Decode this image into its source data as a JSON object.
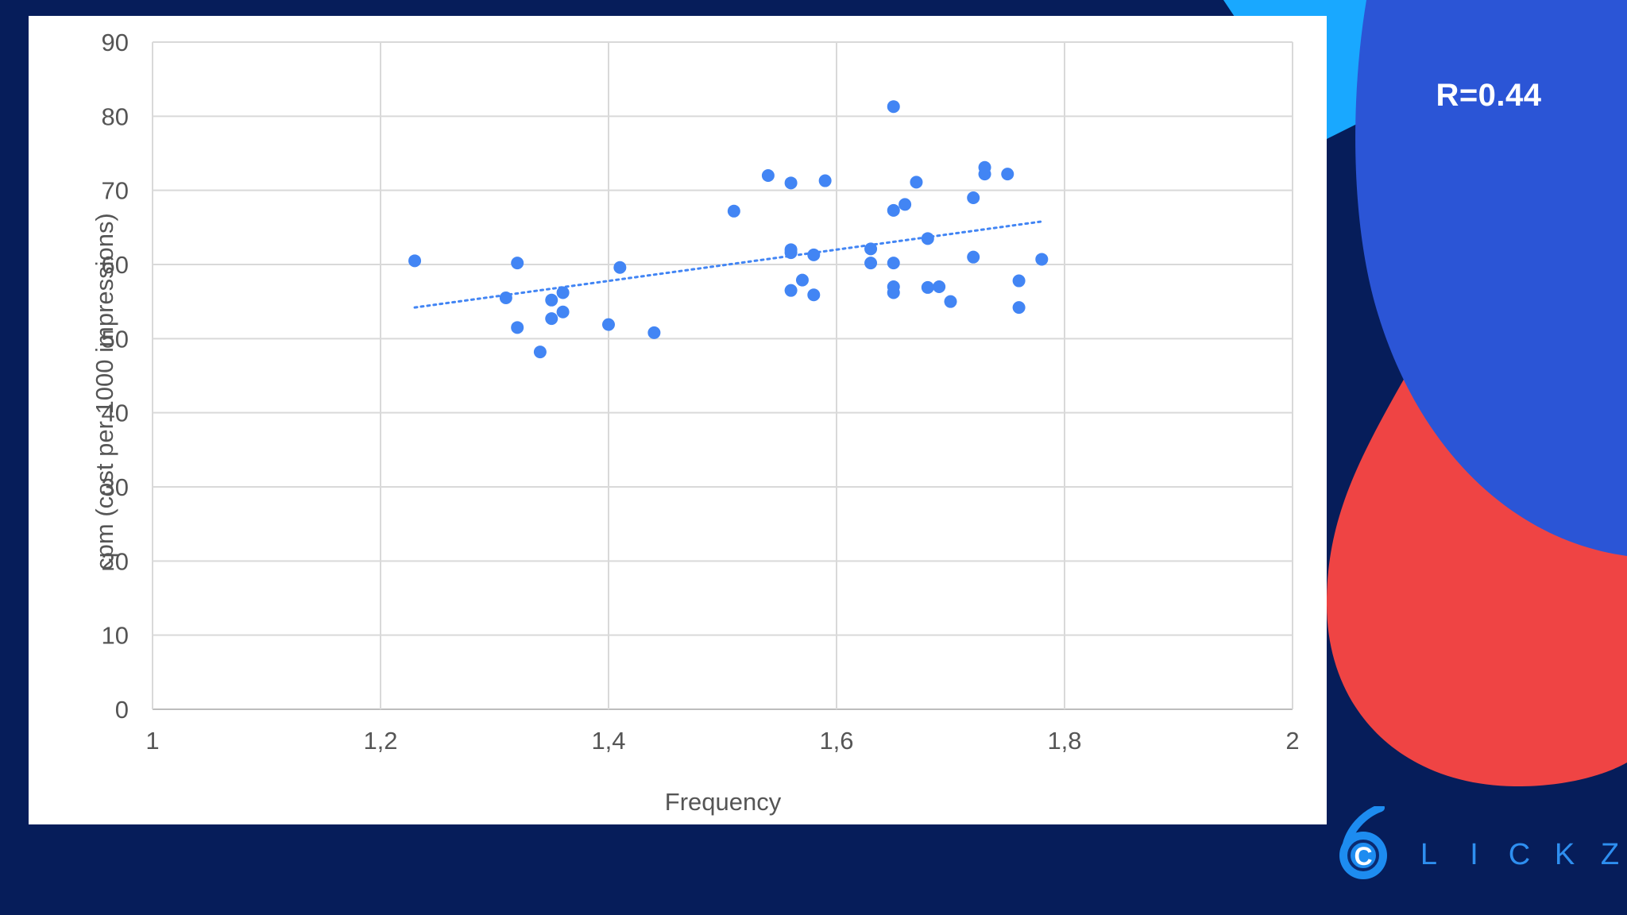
{
  "chart_data": {
    "type": "scatter",
    "title": "",
    "xlabel": "Frequency",
    "ylabel": "cpm (cost per 1000 impressions)",
    "xlim": [
      1,
      2
    ],
    "ylim": [
      0,
      90
    ],
    "x_ticks": [
      "1",
      "1,2",
      "1,4",
      "1,6",
      "1,8",
      "2"
    ],
    "x_tick_values": [
      1,
      1.2,
      1.4,
      1.6,
      1.8,
      2
    ],
    "y_ticks": [
      "0",
      "10",
      "20",
      "30",
      "40",
      "50",
      "60",
      "70",
      "80",
      "90"
    ],
    "y_tick_values": [
      0,
      10,
      20,
      30,
      40,
      50,
      60,
      70,
      80,
      90
    ],
    "grid": true,
    "point_color": "#4285f4",
    "trendline": {
      "style": "dotted",
      "color": "#4285f4",
      "x": [
        1.23,
        1.78
      ],
      "y": [
        54.2,
        65.8
      ]
    },
    "series": [
      {
        "points": [
          [
            1.23,
            60.5
          ],
          [
            1.31,
            55.5
          ],
          [
            1.32,
            60.2
          ],
          [
            1.32,
            51.5
          ],
          [
            1.34,
            48.2
          ],
          [
            1.35,
            55.2
          ],
          [
            1.35,
            52.7
          ],
          [
            1.36,
            56.2
          ],
          [
            1.36,
            53.6
          ],
          [
            1.4,
            51.9
          ],
          [
            1.41,
            59.6
          ],
          [
            1.44,
            50.8
          ],
          [
            1.51,
            67.2
          ],
          [
            1.54,
            72.0
          ],
          [
            1.56,
            71.0
          ],
          [
            1.56,
            62.0
          ],
          [
            1.56,
            61.6
          ],
          [
            1.56,
            56.5
          ],
          [
            1.57,
            57.9
          ],
          [
            1.58,
            61.3
          ],
          [
            1.58,
            55.9
          ],
          [
            1.59,
            71.3
          ],
          [
            1.63,
            62.1
          ],
          [
            1.63,
            60.2
          ],
          [
            1.65,
            81.3
          ],
          [
            1.65,
            67.3
          ],
          [
            1.65,
            60.2
          ],
          [
            1.65,
            57.0
          ],
          [
            1.65,
            56.2
          ],
          [
            1.66,
            68.1
          ],
          [
            1.67,
            71.1
          ],
          [
            1.68,
            63.5
          ],
          [
            1.68,
            56.9
          ],
          [
            1.69,
            57.0
          ],
          [
            1.7,
            55.0
          ],
          [
            1.72,
            69.0
          ],
          [
            1.72,
            61.0
          ],
          [
            1.73,
            73.1
          ],
          [
            1.73,
            72.2
          ],
          [
            1.75,
            72.2
          ],
          [
            1.76,
            57.8
          ],
          [
            1.76,
            54.2
          ],
          [
            1.78,
            60.7
          ]
        ]
      }
    ]
  },
  "annotation": {
    "correlation": "R=0.44"
  },
  "branding": {
    "logo_letters": [
      "L",
      "I",
      "C",
      "K",
      "Z"
    ],
    "logo_mark_letter": "C",
    "colors": {
      "background": "#061d5a",
      "blob_blue": "#2b55d6",
      "blob_red": "#ef4444",
      "accent_cyan": "#19a8ff",
      "logo_blue": "#2e8ff0"
    }
  }
}
